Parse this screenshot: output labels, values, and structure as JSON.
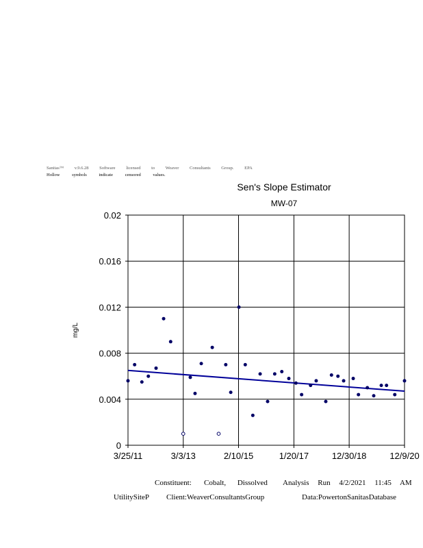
{
  "header": {
    "license_line": "Sanitas™ v.9.6.28 Software licensed to Weaver Consultants Group. EPA",
    "note_line": "Hollow symbols indicate censored values."
  },
  "footer": {
    "constituent": "Constituent:",
    "constituent_name": "Cobalt, Dissolved",
    "analysis_run": "Analysis Run 4/2/2021 11:45 AM",
    "site": "UtilitySiteP",
    "client": "Client:WeaverConsultantsGroup",
    "data_source": "Data:PowertonSanitasDatabase"
  },
  "chart_data": {
    "type": "scatter",
    "title": "Sen's Slope Estimator",
    "subtitle": "MW-07",
    "xlabel": "",
    "ylabel": "mg/L",
    "xlim": [
      "2011-03-25",
      "2020-12-09"
    ],
    "ylim": [
      0,
      0.02
    ],
    "x_tick_labels": [
      "3/25/11",
      "3/3/13",
      "2/10/15",
      "1/20/17",
      "12/30/18",
      "12/9/20"
    ],
    "x_ticks": [
      "2011-03-25",
      "2013-03-03",
      "2015-02-10",
      "2017-01-20",
      "2018-12-30",
      "2020-12-09"
    ],
    "y_tick_labels": [
      "0",
      "0.004",
      "0.008",
      "0.012",
      "0.016",
      "0.02"
    ],
    "y_ticks": [
      0,
      0.004,
      0.008,
      0.012,
      0.016,
      0.02
    ],
    "grid": true,
    "colors": {
      "points": "#000066",
      "trend": "#000099",
      "grid": "#000000"
    },
    "points": [
      {
        "x": "2011-03-25",
        "y": 0.0056,
        "censored": false
      },
      {
        "x": "2011-06-18",
        "y": 0.007,
        "censored": false
      },
      {
        "x": "2011-09-19",
        "y": 0.0055,
        "censored": false
      },
      {
        "x": "2011-12-11",
        "y": 0.006,
        "censored": false
      },
      {
        "x": "2012-03-19",
        "y": 0.0067,
        "censored": false
      },
      {
        "x": "2012-06-24",
        "y": 0.011,
        "censored": false
      },
      {
        "x": "2012-09-22",
        "y": 0.009,
        "censored": false
      },
      {
        "x": "2013-03-03",
        "y": 0.001,
        "censored": true
      },
      {
        "x": "2013-06-01",
        "y": 0.0059,
        "censored": false
      },
      {
        "x": "2013-08-01",
        "y": 0.0045,
        "censored": false
      },
      {
        "x": "2013-10-20",
        "y": 0.0071,
        "censored": false
      },
      {
        "x": "2014-03-10",
        "y": 0.0085,
        "censored": false
      },
      {
        "x": "2014-05-31",
        "y": 0.001,
        "censored": true
      },
      {
        "x": "2014-08-30",
        "y": 0.007,
        "censored": false
      },
      {
        "x": "2014-11-02",
        "y": 0.0046,
        "censored": false
      },
      {
        "x": "2015-02-15",
        "y": 0.012,
        "censored": false
      },
      {
        "x": "2015-05-07",
        "y": 0.007,
        "censored": false
      },
      {
        "x": "2015-08-12",
        "y": 0.0026,
        "censored": false
      },
      {
        "x": "2015-11-14",
        "y": 0.0062,
        "censored": false
      },
      {
        "x": "2016-02-18",
        "y": 0.0038,
        "censored": false
      },
      {
        "x": "2016-05-19",
        "y": 0.0062,
        "censored": false
      },
      {
        "x": "2016-08-18",
        "y": 0.0064,
        "censored": false
      },
      {
        "x": "2016-11-16",
        "y": 0.0058,
        "censored": false
      },
      {
        "x": "2017-02-15",
        "y": 0.0054,
        "censored": false
      },
      {
        "x": "2017-04-29",
        "y": 0.0044,
        "censored": false
      },
      {
        "x": "2017-08-22",
        "y": 0.0052,
        "censored": false
      },
      {
        "x": "2017-11-02",
        "y": 0.0056,
        "censored": false
      },
      {
        "x": "2018-03-05",
        "y": 0.0038,
        "censored": false
      },
      {
        "x": "2018-05-17",
        "y": 0.0061,
        "censored": false
      },
      {
        "x": "2018-08-08",
        "y": 0.006,
        "censored": false
      },
      {
        "x": "2018-10-20",
        "y": 0.0056,
        "censored": false
      },
      {
        "x": "2019-02-20",
        "y": 0.0058,
        "censored": false
      },
      {
        "x": "2019-04-28",
        "y": 0.0044,
        "censored": false
      },
      {
        "x": "2019-08-20",
        "y": 0.005,
        "censored": false
      },
      {
        "x": "2019-11-10",
        "y": 0.0043,
        "censored": false
      },
      {
        "x": "2020-02-15",
        "y": 0.0052,
        "censored": false
      },
      {
        "x": "2020-04-22",
        "y": 0.0052,
        "censored": false
      },
      {
        "x": "2020-08-06",
        "y": 0.0044,
        "censored": false
      },
      {
        "x": "2020-12-09",
        "y": 0.0056,
        "censored": false
      }
    ],
    "trend_line": [
      {
        "x": "2011-03-25",
        "y": 0.0065
      },
      {
        "x": "2020-12-09",
        "y": 0.0047
      }
    ]
  }
}
